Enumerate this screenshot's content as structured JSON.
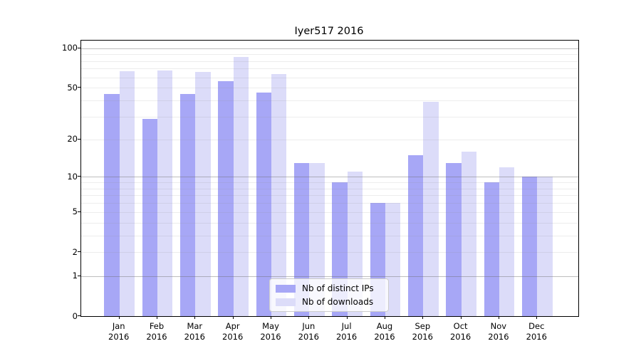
{
  "title": "Iyer517 2016",
  "colors": {
    "ips": "#a7a7f6",
    "downloads": "#dcdcf9",
    "axis": "#000000",
    "grid_major": "#6e6e6e",
    "grid_minor": "#e4e4e4",
    "legend_border": "#cccccc"
  },
  "legend": {
    "items": [
      {
        "label": "Nb of distinct IPs",
        "color_key": "ips"
      },
      {
        "label": "Nb of downloads",
        "color_key": "downloads"
      }
    ]
  },
  "chart_data": {
    "type": "bar",
    "title": "Iyer517 2016",
    "categories": [
      "Jan 2016",
      "Feb 2016",
      "Mar 2016",
      "Apr 2016",
      "May 2016",
      "Jun 2016",
      "Jul 2016",
      "Aug 2016",
      "Sep 2016",
      "Oct 2016",
      "Nov 2016",
      "Dec 2016"
    ],
    "category_line1": [
      "Jan",
      "Feb",
      "Mar",
      "Apr",
      "May",
      "Jun",
      "Jul",
      "Aug",
      "Sep",
      "Oct",
      "Nov",
      "Dec"
    ],
    "category_line2": "2016",
    "series": [
      {
        "name": "Nb of distinct IPs",
        "values": [
          45,
          29,
          45,
          56,
          46,
          13,
          9,
          6,
          15,
          13,
          9,
          10
        ]
      },
      {
        "name": "Nb of downloads",
        "values": [
          67,
          68,
          66,
          86,
          64,
          13,
          11,
          6,
          39,
          16,
          12,
          10
        ]
      }
    ],
    "xlabel": "",
    "ylabel": "",
    "yscale": "log10(value+1)",
    "ylim": [
      0,
      114
    ],
    "y_major_ticks": [
      0,
      1,
      2,
      5,
      10,
      20,
      50,
      100
    ],
    "y_major_gridlines": [
      1,
      10,
      100
    ],
    "y_minor_gridlines": [
      2,
      3,
      4,
      5,
      6,
      7,
      8,
      9,
      20,
      30,
      40,
      50,
      60,
      70,
      80,
      90
    ],
    "grid": true,
    "legend_position": "lower center"
  }
}
